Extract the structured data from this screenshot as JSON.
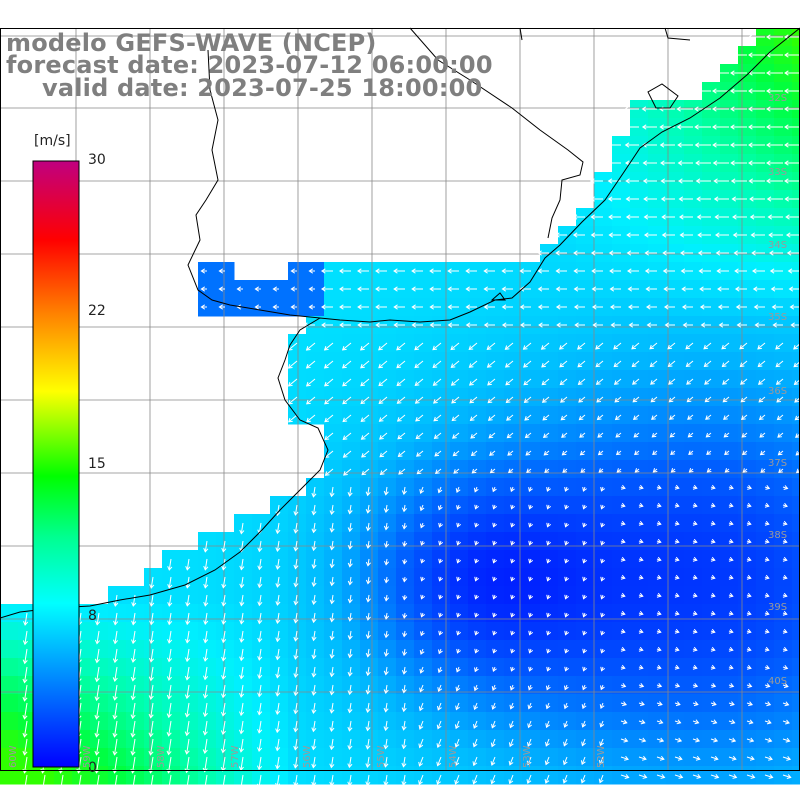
{
  "map": {
    "title_model": "modelo GEFS-WAVE (NCEP)",
    "forecast_date": "forecast date: 2023-07-12 06:00:00",
    "valid_date": "valid date: 2023-07-25 18:00:00",
    "variable": "wind speed and direction",
    "colorbar": {
      "unit": "[m/s]",
      "ticks": [
        "30",
        "22",
        "15",
        "8",
        "0"
      ],
      "colors": [
        "#0000ff",
        "#00a0ff",
        "#00ffff",
        "#00ff40",
        "#40ff00",
        "#ffff00",
        "#ff8000",
        "#ff0000",
        "#ff0040",
        "#c00080"
      ]
    },
    "lat_labels": [
      "32S",
      "33S",
      "34S",
      "35S",
      "36S",
      "37S",
      "38S",
      "39S",
      "40S"
    ],
    "lon_labels": [
      "60W",
      "59W",
      "58W",
      "57W",
      "56W",
      "55W",
      "54W",
      "53W",
      "52W"
    ],
    "colors": {
      "land": "#ffffff",
      "grid": "#888888",
      "coast": "#000000",
      "arrow": "#ffffff"
    }
  }
}
